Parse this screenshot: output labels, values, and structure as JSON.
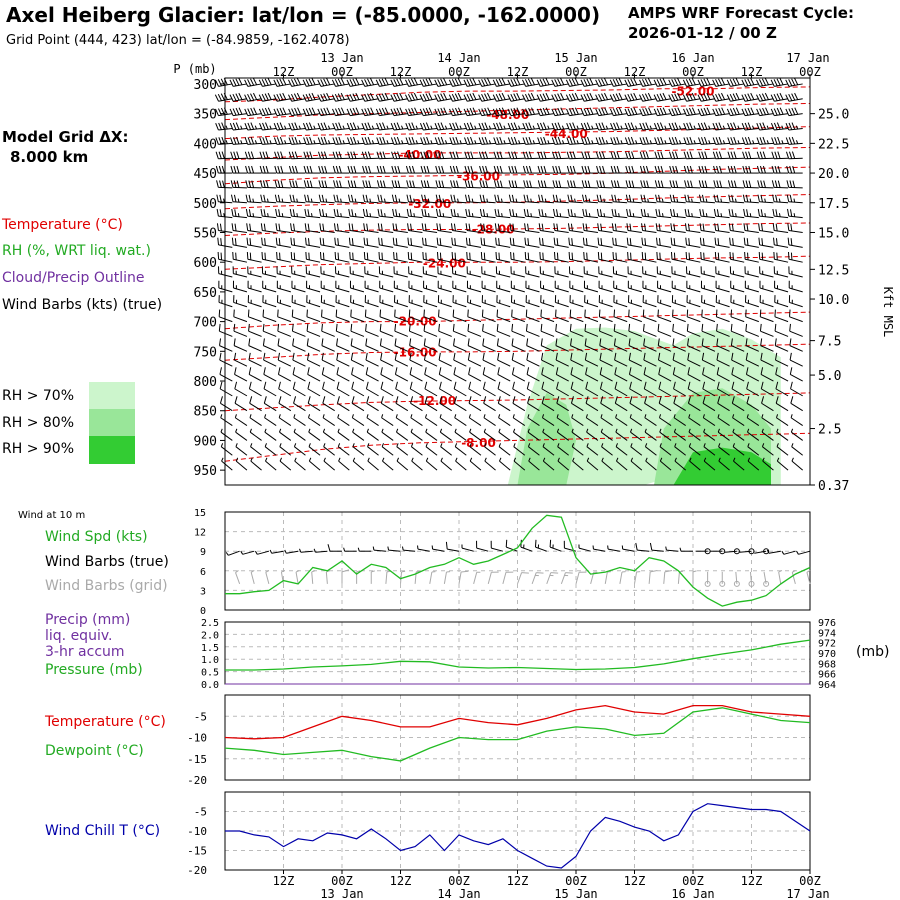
{
  "header": {
    "title": "Axel Heiberg Glacier:  lat/lon = (-85.0000, -162.0000)",
    "subtitle": "Grid Point (444, 423) lat/lon = (-84.9859, -162.4078)",
    "cycle_line1": "AMPS WRF Forecast Cycle:",
    "cycle_line2": "2026-01-12 / 00  Z"
  },
  "sidebar": {
    "model_grid_label": "Model Grid ΔX:",
    "model_grid_value": "8.000 km",
    "legend_temperature": "Temperature (°C)",
    "legend_rh": "RH (%, WRT liq. wat.)",
    "legend_cloud": "Cloud/Precip Outline",
    "legend_wind": "Wind Barbs (kts) (true)",
    "rh_thresholds": [
      "RH > 70%",
      "RH > 80%",
      "RH > 90%"
    ],
    "wind10_title": "Wind at 10 m",
    "wind_spd_label": "Wind Spd (kts)",
    "wind_barbs_true": "Wind Barbs (true)",
    "wind_barbs_grid": "Wind Barbs (grid)",
    "precip_line1": "Precip (mm)",
    "precip_line2": "liq. equiv.",
    "precip_line3": "3-hr accum",
    "pressure_label": "Pressure (mb)",
    "pressure_unit": "(mb)",
    "temp_label": "Temperature (°C)",
    "dew_label": "Dewpoint (°C)",
    "windchill_label": "Wind Chill T (°C)"
  },
  "colors": {
    "temperature": "#e00000",
    "dewpoint": "#22bb22",
    "wind_speed": "#22bb22",
    "wind_chill": "#0000aa",
    "cloud_outline": "#7030a0",
    "grid_barbs": "#aaaaaa",
    "rh70": "#ccf5cc",
    "rh80": "#99e699",
    "rh90": "#33cc33"
  },
  "chart_data": [
    {
      "type": "contour",
      "name": "cross_section",
      "x_ticks": [
        "12Z",
        "00Z",
        "12Z",
        "00Z",
        "12Z",
        "00Z",
        "12Z",
        "00Z",
        "12Z",
        "00Z"
      ],
      "x_hours": [
        12,
        24,
        36,
        48,
        60,
        72,
        84,
        96,
        108,
        120
      ],
      "day_labels": [
        "13 Jan",
        "14 Jan",
        "15 Jan",
        "16 Jan",
        "17 Jan"
      ],
      "day_hours": [
        24,
        48,
        72,
        96,
        120
      ],
      "xlim": [
        0,
        120
      ],
      "ylabel": "P (mb)",
      "p_ticks": [
        300,
        350,
        400,
        450,
        500,
        550,
        600,
        650,
        700,
        750,
        800,
        850,
        900,
        950
      ],
      "ylim": [
        290,
        975
      ],
      "kft_ticks": [
        "25.0",
        "22.5",
        "20.0",
        "17.5",
        "15.0",
        "12.5",
        "10.0",
        "7.5",
        "5.0",
        "2.5",
        "0.37"
      ],
      "kft_at_p": [
        350,
        400,
        450,
        500,
        550,
        612,
        662,
        732,
        790,
        880,
        975
      ],
      "kft_label": "Kft MSL",
      "temp_contours": [
        {
          "label": "-52.00",
          "level": -52,
          "p": [
            330,
            327,
            322,
            318,
            314,
            312,
            312,
            311,
            310,
            308,
            308,
            306,
            305
          ],
          "lab_hour": 96,
          "lab_p": 313
        },
        {
          "label": "-48.00",
          "level": -48,
          "p": [
            360,
            356,
            352,
            350,
            348,
            346,
            344,
            342,
            340,
            338,
            336,
            334,
            333
          ],
          "lab_hour": 58,
          "lab_p": 352
        },
        {
          "label": "-44.00",
          "level": -44,
          "p": [
            392,
            388,
            386,
            385,
            384,
            383,
            382,
            381,
            380,
            378,
            376,
            374,
            372
          ],
          "lab_hour": 70,
          "lab_p": 384
        },
        {
          "label": "-40.00",
          "level": -40,
          "p": [
            428,
            424,
            420,
            418,
            416,
            416,
            416,
            415,
            414,
            412,
            410,
            408,
            407
          ],
          "lab_hour": 40,
          "lab_p": 420
        },
        {
          "label": "-36.00",
          "level": -36,
          "p": [
            468,
            462,
            458,
            456,
            455,
            454,
            453,
            452,
            450,
            447,
            444,
            442,
            440
          ],
          "lab_hour": 52,
          "lab_p": 456
        },
        {
          "label": "-32.00",
          "level": -32,
          "p": [
            510,
            506,
            503,
            501,
            500,
            500,
            499,
            497,
            495,
            492,
            490,
            488,
            486
          ],
          "lab_hour": 42,
          "lab_p": 502
        },
        {
          "label": "-28.00",
          "level": -28,
          "p": [
            555,
            551,
            548,
            546,
            545,
            545,
            544,
            543,
            541,
            539,
            537,
            535,
            534
          ],
          "lab_hour": 55,
          "lab_p": 545
        },
        {
          "label": "-24.00",
          "level": -24,
          "p": [
            612,
            608,
            604,
            602,
            600,
            600,
            600,
            599,
            597,
            595,
            593,
            592,
            590
          ],
          "lab_hour": 45,
          "lab_p": 602
        },
        {
          "label": "-20.00",
          "level": -20,
          "p": [
            712,
            706,
            702,
            700,
            700,
            698,
            696,
            694,
            692,
            690,
            688,
            686,
            684
          ],
          "lab_hour": 39,
          "lab_p": 700
        },
        {
          "label": "-16.00",
          "level": -16,
          "p": [
            765,
            760,
            755,
            752,
            751,
            751,
            750,
            748,
            746,
            744,
            742,
            740,
            738
          ],
          "lab_hour": 39,
          "lab_p": 752
        },
        {
          "label": "-12.00",
          "level": -12,
          "p": [
            850,
            845,
            840,
            836,
            834,
            833,
            832,
            830,
            828,
            826,
            824,
            822,
            820
          ],
          "lab_hour": 43,
          "lab_p": 834
        },
        {
          "label": "-8.00",
          "level": -8,
          "p": [
            935,
            925,
            915,
            908,
            904,
            902,
            900,
            898,
            896,
            894,
            892,
            890,
            888
          ],
          "lab_hour": 52,
          "lab_p": 904
        }
      ],
      "contour_hours": [
        0,
        10,
        20,
        30,
        40,
        50,
        60,
        70,
        80,
        90,
        100,
        110,
        120
      ],
      "rh_regions": [
        {
          "level": 70,
          "hours": [
            58,
            62,
            66,
            72,
            78,
            84,
            88,
            92,
            96,
            102,
            108,
            114,
            114,
            108,
            100,
            92,
            86,
            78,
            70,
            62,
            58
          ],
          "p": [
            975,
            840,
            740,
            712,
            710,
            716,
            728,
            740,
            720,
            712,
            730,
            760,
            975,
            975,
            975,
            960,
            975,
            975,
            975,
            975,
            975
          ]
        },
        {
          "level": 80,
          "hours": [
            60,
            62,
            66,
            70,
            72,
            70,
            66,
            62,
            60
          ],
          "p": [
            975,
            880,
            820,
            840,
            900,
            975,
            975,
            975,
            975
          ]
        },
        {
          "level": 80,
          "hours": [
            88,
            90,
            96,
            102,
            108,
            112,
            112,
            104,
            96,
            88
          ],
          "p": [
            975,
            880,
            820,
            812,
            840,
            880,
            975,
            975,
            975,
            975
          ]
        },
        {
          "level": 90,
          "hours": [
            92,
            96,
            102,
            108,
            112,
            112,
            92
          ],
          "p": [
            975,
            920,
            912,
            920,
            940,
            975,
            975
          ]
        }
      ],
      "barb_hours_step": 3,
      "barb_levels": [
        300,
        325,
        350,
        375,
        400,
        425,
        450,
        475,
        500,
        525,
        550,
        575,
        600,
        625,
        650,
        675,
        700,
        725,
        750,
        775,
        800,
        825,
        850,
        875,
        900,
        925,
        950
      ],
      "barb_speed_kts": [
        40,
        40,
        38,
        36,
        34,
        32,
        30,
        28,
        26,
        24,
        22,
        20,
        18,
        16,
        15,
        14,
        12,
        12,
        10,
        10,
        10,
        8,
        8,
        6,
        6,
        5,
        5
      ],
      "barb_dir_deg": [
        260,
        260,
        262,
        264,
        266,
        268,
        270,
        272,
        274,
        276,
        278,
        280,
        282,
        284,
        286,
        288,
        290,
        292,
        294,
        296,
        298,
        300,
        302,
        304,
        306,
        308,
        310
      ]
    },
    {
      "type": "line",
      "name": "wind10m",
      "ylim": [
        0,
        15
      ],
      "yticks": [
        0,
        3,
        6,
        9,
        12,
        15
      ],
      "hours": [
        0,
        3,
        6,
        9,
        12,
        15,
        18,
        21,
        24,
        27,
        30,
        33,
        36,
        39,
        42,
        45,
        48,
        51,
        54,
        57,
        60,
        63,
        66,
        69,
        72,
        75,
        78,
        81,
        84,
        87,
        90,
        93,
        96,
        99,
        102,
        105,
        108,
        111,
        114,
        117,
        120
      ],
      "wind_spd": [
        2.5,
        2.5,
        2.8,
        3.0,
        4.5,
        4.0,
        6.5,
        6.0,
        7.5,
        5.5,
        7.0,
        6.5,
        4.8,
        5.5,
        6.5,
        7.0,
        8.0,
        7.0,
        7.5,
        8.5,
        9.5,
        12.5,
        14.5,
        14.2,
        8.0,
        5.5,
        5.8,
        6.5,
        6.0,
        8.0,
        7.5,
        6.0,
        3.5,
        1.8,
        0.6,
        1.2,
        1.5,
        2.2,
        4.0,
        5.5,
        6.5
      ],
      "true_barb_dir_deg": [
        250,
        250,
        255,
        255,
        260,
        260,
        265,
        265,
        270,
        270,
        270,
        275,
        275,
        275,
        280,
        280,
        280,
        285,
        285,
        285,
        290,
        290,
        290,
        290,
        285,
        285,
        280,
        280,
        280,
        275,
        275,
        275,
        270,
        270,
        270,
        265,
        265,
        260,
        260,
        255,
        255
      ],
      "grid_barb_dir_deg": [
        340,
        340,
        345,
        345,
        350,
        350,
        355,
        355,
        0,
        0,
        0,
        5,
        5,
        5,
        10,
        10,
        10,
        15,
        15,
        15,
        20,
        20,
        20,
        20,
        15,
        15,
        10,
        10,
        10,
        5,
        5,
        5,
        0,
        0,
        0,
        355,
        355,
        350,
        350,
        345,
        345
      ]
    },
    {
      "type": "line",
      "name": "pressure_precip",
      "y_left_ticks": [
        "0.0",
        "0.5",
        "1.0",
        "1.5",
        "2.0",
        "2.5"
      ],
      "ylim_left": [
        0,
        2.5
      ],
      "y_right_ticks": [
        "964",
        "966",
        "968",
        "970",
        "972",
        "974",
        "976"
      ],
      "ylim_right": [
        964,
        976
      ],
      "hours": [
        0,
        6,
        12,
        18,
        24,
        30,
        36,
        42,
        48,
        54,
        60,
        66,
        72,
        78,
        84,
        90,
        96,
        102,
        108,
        114,
        120
      ],
      "pressure_mb": [
        966.7,
        966.7,
        966.9,
        967.3,
        967.5,
        967.8,
        968.4,
        968.3,
        967.3,
        967.1,
        967.2,
        967.0,
        966.8,
        966.9,
        967.2,
        967.9,
        968.9,
        969.8,
        970.6,
        971.7,
        972.5
      ],
      "precip_mm": [
        0,
        0,
        0,
        0,
        0,
        0,
        0,
        0,
        0,
        0,
        0,
        0,
        0,
        0,
        0,
        0,
        0,
        0,
        0,
        0,
        0
      ]
    },
    {
      "type": "line",
      "name": "temp_dew",
      "ylim": [
        -20,
        0
      ],
      "yticks": [
        -20,
        -15,
        -10,
        -5
      ],
      "hours": [
        0,
        6,
        12,
        18,
        24,
        30,
        36,
        42,
        48,
        54,
        60,
        66,
        72,
        78,
        84,
        90,
        96,
        102,
        108,
        114,
        120
      ],
      "temperature": [
        -10,
        -10.3,
        -10,
        -7.5,
        -5,
        -6,
        -7.5,
        -7.5,
        -5.5,
        -6.5,
        -7,
        -5.5,
        -3.5,
        -2.5,
        -4,
        -4.5,
        -2.5,
        -2.5,
        -4,
        -4.5,
        -5
      ],
      "dewpoint": [
        -12.5,
        -13,
        -14,
        -13.5,
        -13,
        -14.5,
        -15.5,
        -12.5,
        -10,
        -10.5,
        -10.5,
        -8.5,
        -7.5,
        -8,
        -9.5,
        -9,
        -4,
        -3,
        -4.5,
        -6,
        -6.5
      ]
    },
    {
      "type": "line",
      "name": "wind_chill",
      "ylim": [
        -20,
        0
      ],
      "yticks": [
        -20,
        -15,
        -10,
        -5
      ],
      "hours": [
        0,
        3,
        6,
        9,
        12,
        15,
        18,
        21,
        24,
        27,
        30,
        33,
        36,
        39,
        42,
        45,
        48,
        51,
        54,
        57,
        60,
        63,
        66,
        69,
        72,
        75,
        78,
        81,
        84,
        87,
        90,
        93,
        96,
        99,
        102,
        105,
        108,
        111,
        114,
        117,
        120
      ],
      "wind_chill": [
        -10,
        -10,
        -11,
        -11.5,
        -14,
        -12,
        -12.5,
        -10.5,
        -11,
        -12,
        -9.5,
        -12,
        -15,
        -14,
        -11,
        -15,
        -11,
        -12.5,
        -13.5,
        -12,
        -15,
        -17,
        -19,
        -19.5,
        -16.5,
        -10,
        -6.5,
        -7.5,
        -9,
        -10,
        -12.5,
        -11,
        -5,
        -3,
        -3.5,
        -4,
        -4.5,
        -4.5,
        -5,
        -7.5,
        -10
      ]
    }
  ]
}
